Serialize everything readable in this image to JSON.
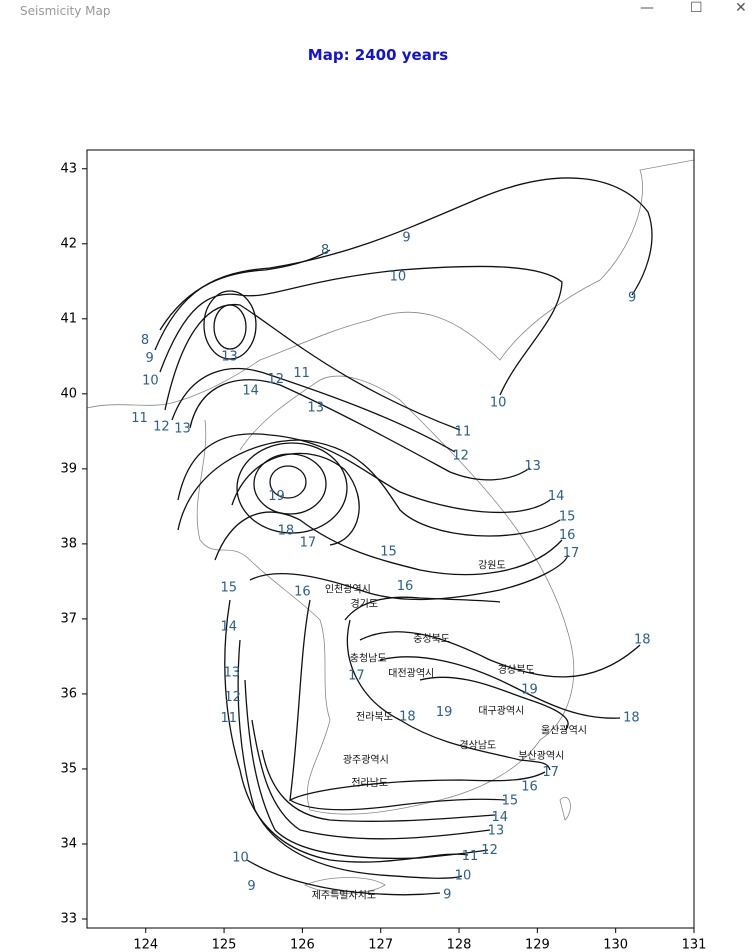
{
  "window": {
    "title": "Seismicity Map"
  },
  "chart_data": {
    "type": "contour",
    "title": "Map: 2400 years",
    "xlim": [
      123.25,
      131
    ],
    "ylim": [
      32.88,
      43.25
    ],
    "xticks": [
      124,
      125,
      126,
      127,
      128,
      129,
      130,
      131
    ],
    "yticks": [
      33,
      34,
      35,
      36,
      37,
      38,
      39,
      40,
      41,
      42,
      43
    ],
    "contour_labels": [
      {
        "value": 8,
        "x": 126.29,
        "y": 41.91
      },
      {
        "value": 9,
        "x": 127.33,
        "y": 42.08
      },
      {
        "value": 10,
        "x": 127.22,
        "y": 41.56
      },
      {
        "value": 9,
        "x": 130.21,
        "y": 41.28
      },
      {
        "value": 8,
        "x": 123.99,
        "y": 40.71
      },
      {
        "value": 9,
        "x": 124.05,
        "y": 40.47
      },
      {
        "value": 10,
        "x": 124.06,
        "y": 40.17
      },
      {
        "value": 13,
        "x": 125.07,
        "y": 40.49
      },
      {
        "value": 11,
        "x": 125.99,
        "y": 40.27
      },
      {
        "value": 12,
        "x": 125.66,
        "y": 40.19
      },
      {
        "value": 14,
        "x": 125.34,
        "y": 40.04
      },
      {
        "value": 13,
        "x": 126.17,
        "y": 39.81
      },
      {
        "value": 10,
        "x": 128.5,
        "y": 39.88
      },
      {
        "value": 11,
        "x": 123.92,
        "y": 39.67
      },
      {
        "value": 12,
        "x": 124.2,
        "y": 39.56
      },
      {
        "value": 13,
        "x": 124.47,
        "y": 39.53
      },
      {
        "value": 11,
        "x": 128.05,
        "y": 39.49
      },
      {
        "value": 12,
        "x": 128.02,
        "y": 39.17
      },
      {
        "value": 13,
        "x": 128.94,
        "y": 39.03
      },
      {
        "value": 14,
        "x": 129.24,
        "y": 38.63
      },
      {
        "value": 19,
        "x": 125.67,
        "y": 38.63
      },
      {
        "value": 15,
        "x": 129.38,
        "y": 38.36
      },
      {
        "value": 18,
        "x": 125.79,
        "y": 38.17
      },
      {
        "value": 16,
        "x": 129.38,
        "y": 38.11
      },
      {
        "value": 17,
        "x": 126.07,
        "y": 38.01
      },
      {
        "value": 17,
        "x": 129.43,
        "y": 37.87
      },
      {
        "value": 15,
        "x": 127.1,
        "y": 37.89
      },
      {
        "value": 16,
        "x": 127.31,
        "y": 37.43
      },
      {
        "value": 16,
        "x": 126.0,
        "y": 37.36
      },
      {
        "value": 15,
        "x": 125.06,
        "y": 37.41
      },
      {
        "value": 14,
        "x": 125.06,
        "y": 36.89
      },
      {
        "value": 18,
        "x": 130.34,
        "y": 36.72
      },
      {
        "value": 13,
        "x": 125.1,
        "y": 36.28
      },
      {
        "value": 17,
        "x": 126.69,
        "y": 36.24
      },
      {
        "value": 12,
        "x": 125.11,
        "y": 35.95
      },
      {
        "value": 19,
        "x": 128.9,
        "y": 36.05
      },
      {
        "value": 11,
        "x": 125.06,
        "y": 35.67
      },
      {
        "value": 18,
        "x": 127.34,
        "y": 35.69
      },
      {
        "value": 19,
        "x": 127.81,
        "y": 35.75
      },
      {
        "value": 18,
        "x": 130.2,
        "y": 35.68
      },
      {
        "value": 17,
        "x": 129.17,
        "y": 34.95
      },
      {
        "value": 16,
        "x": 128.9,
        "y": 34.76
      },
      {
        "value": 15,
        "x": 128.65,
        "y": 34.57
      },
      {
        "value": 14,
        "x": 128.52,
        "y": 34.35
      },
      {
        "value": 13,
        "x": 128.47,
        "y": 34.17
      },
      {
        "value": 12,
        "x": 128.39,
        "y": 33.91
      },
      {
        "value": 11,
        "x": 128.14,
        "y": 33.83
      },
      {
        "value": 10,
        "x": 128.05,
        "y": 33.57
      },
      {
        "value": 9,
        "x": 127.85,
        "y": 33.32
      },
      {
        "value": 10,
        "x": 125.21,
        "y": 33.81
      },
      {
        "value": 9,
        "x": 125.35,
        "y": 33.43
      }
    ],
    "place_labels": [
      {
        "text": "강원도",
        "x": 128.42,
        "y": 37.71
      },
      {
        "text": "인천광역시",
        "x": 126.58,
        "y": 37.39
      },
      {
        "text": "경기도",
        "x": 126.79,
        "y": 37.2
      },
      {
        "text": "충청북도",
        "x": 127.65,
        "y": 36.73
      },
      {
        "text": "충청남도",
        "x": 126.84,
        "y": 36.47
      },
      {
        "text": "경상북도",
        "x": 128.73,
        "y": 36.32
      },
      {
        "text": "대전광역시",
        "x": 127.39,
        "y": 36.27
      },
      {
        "text": "대구광역시",
        "x": 128.54,
        "y": 35.77
      },
      {
        "text": "전라북도",
        "x": 126.92,
        "y": 35.69
      },
      {
        "text": "울산광역시",
        "x": 129.34,
        "y": 35.51
      },
      {
        "text": "경상남도",
        "x": 128.24,
        "y": 35.31
      },
      {
        "text": "부산광역시",
        "x": 129.05,
        "y": 35.17
      },
      {
        "text": "광주광역시",
        "x": 126.81,
        "y": 35.12
      },
      {
        "text": "전라남도",
        "x": 126.86,
        "y": 34.81
      },
      {
        "text": "제주특별자치도",
        "x": 126.53,
        "y": 33.31
      }
    ]
  }
}
